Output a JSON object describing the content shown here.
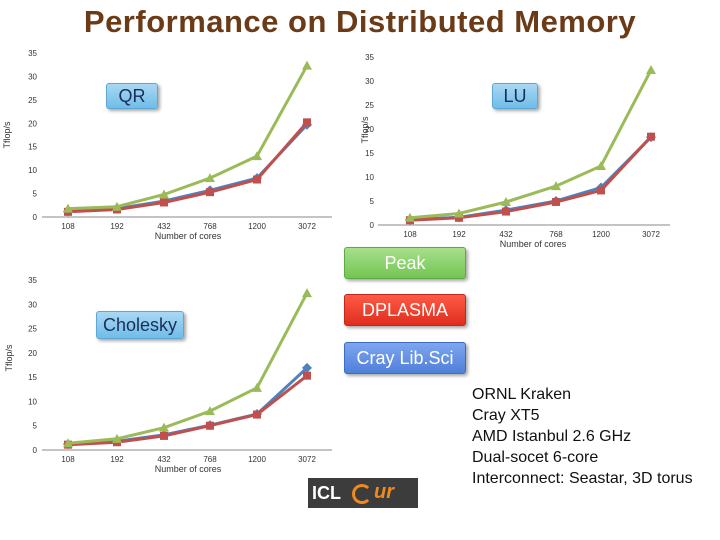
{
  "title": "Performance on Distributed Memory",
  "labels": {
    "qr": "QR",
    "lu": "LU",
    "cholesky": "Cholesky",
    "peak": "Peak",
    "dplasma": "DPLASMA",
    "cray": "Cray Lib.Sci"
  },
  "info_lines": [
    "ORNL Kraken",
    "Cray XT5",
    "AMD Istanbul 2.6 GHz",
    "Dual-socet 6-core",
    "Interconnect: Seastar, 3D torus"
  ],
  "logo": {
    "left": "ICL",
    "right": "ur"
  },
  "colors": {
    "peak": "#9bbb59",
    "dplasma": "#c0504d",
    "cray": "#4f81bd"
  },
  "chart_data": [
    {
      "type": "line",
      "name": "QR",
      "categories": [
        "108",
        "192",
        "432",
        "768",
        "1200",
        "3072"
      ],
      "xlabel": "Number of cores",
      "ylabel": "Tflop/s",
      "ylim": [
        0,
        35
      ],
      "yticks": [
        "0",
        "5",
        "10",
        "15",
        "20",
        "25",
        "30",
        "35"
      ],
      "series": [
        {
          "name": "Peak",
          "values": [
            1.8,
            2.2,
            4.8,
            8.3,
            13,
            32.3
          ]
        },
        {
          "name": "DPLASMA",
          "values": [
            1.1,
            1.6,
            3.1,
            5.3,
            8,
            20.2
          ]
        },
        {
          "name": "Cray Lib.Sci",
          "values": [
            1.2,
            1.8,
            3.4,
            5.7,
            8.3,
            19.7
          ]
        }
      ]
    },
    {
      "type": "line",
      "name": "LU",
      "categories": [
        "108",
        "192",
        "432",
        "768",
        "1200",
        "3072"
      ],
      "xlabel": "Number of cores",
      "ylabel": "Tflop/s",
      "ylim": [
        0,
        35
      ],
      "yticks": [
        "0",
        "5",
        "10",
        "15",
        "20",
        "25",
        "30",
        "35"
      ],
      "series": [
        {
          "name": "Peak",
          "values": [
            1.5,
            2.4,
            4.8,
            8.1,
            12.3,
            32.3
          ]
        },
        {
          "name": "DPLASMA",
          "values": [
            1,
            1.5,
            2.8,
            4.8,
            7.2,
            18.4
          ]
        },
        {
          "name": "Cray Lib.Sci",
          "values": [
            1.1,
            1.6,
            3.1,
            5,
            7.8,
            18.3
          ]
        }
      ]
    },
    {
      "type": "line",
      "name": "Cholesky",
      "categories": [
        "108",
        "192",
        "432",
        "768",
        "1200",
        "3072"
      ],
      "xlabel": "Number of cores",
      "ylabel": "Tflop/s",
      "ylim": [
        0,
        35
      ],
      "yticks": [
        "0",
        "5",
        "10",
        "15",
        "20",
        "25",
        "30",
        "35"
      ],
      "series": [
        {
          "name": "Peak",
          "values": [
            1.4,
            2.3,
            4.6,
            8,
            12.8,
            32.3
          ]
        },
        {
          "name": "DPLASMA",
          "values": [
            1.1,
            1.6,
            2.9,
            5,
            7.3,
            15.3
          ]
        },
        {
          "name": "Cray Lib.Sci",
          "values": [
            1.2,
            1.8,
            3.1,
            5.1,
            7.4,
            16.9
          ]
        }
      ]
    }
  ]
}
